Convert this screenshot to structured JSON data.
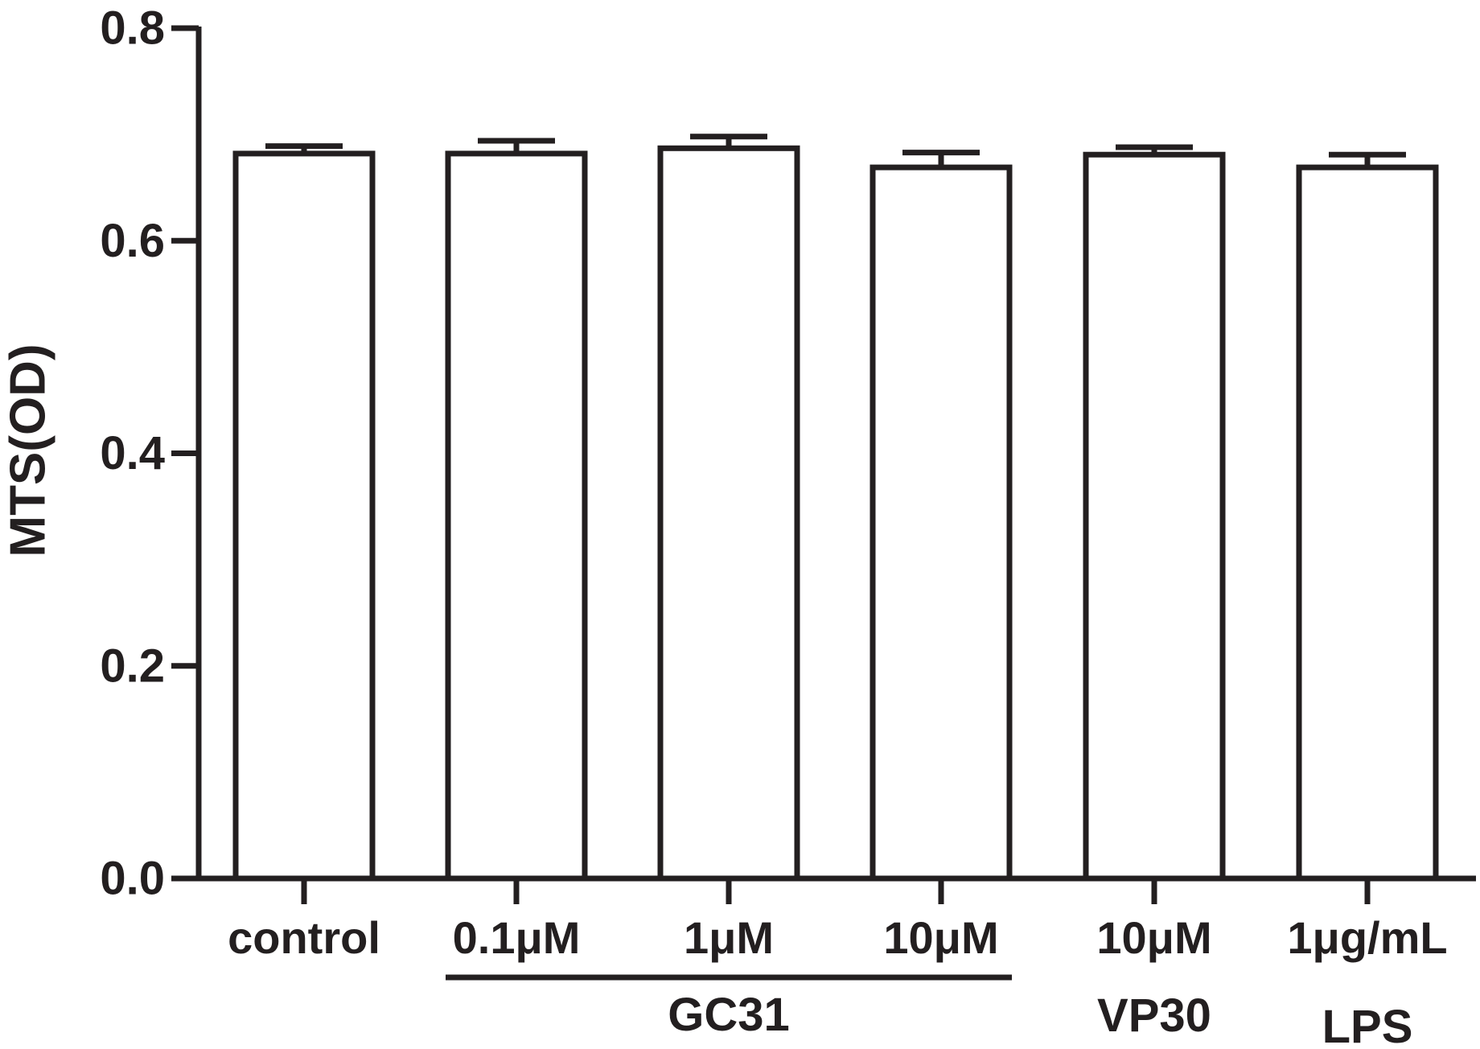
{
  "colors": {
    "stroke": "#231f20",
    "bar_fill": "#ffffff",
    "background": "#ffffff"
  },
  "chart_data": {
    "type": "bar",
    "title": "",
    "ylabel": "MTS(OD)",
    "xlabel": "",
    "ylim": [
      0,
      0.8
    ],
    "yticks": [
      0.0,
      0.2,
      0.4,
      0.6,
      0.8
    ],
    "ytick_labels": [
      "0.0",
      "0.2",
      "0.4",
      "0.6",
      "0.8"
    ],
    "grid": false,
    "legend": "none",
    "categories": [
      "control",
      "0.1μM",
      "1μM",
      "10μM",
      "10μM",
      "1μg/mL"
    ],
    "values": [
      0.682,
      0.682,
      0.687,
      0.669,
      0.681,
      0.669
    ],
    "errors": [
      0.007,
      0.012,
      0.011,
      0.014,
      0.007,
      0.012
    ],
    "groups": [
      {
        "label": "GC31",
        "from": 1,
        "to": 3,
        "underline": true
      },
      {
        "label": "VP30",
        "from": 4,
        "to": 4,
        "underline": false
      },
      {
        "label": "LPS",
        "from": 5,
        "to": 5,
        "underline": false
      }
    ]
  }
}
